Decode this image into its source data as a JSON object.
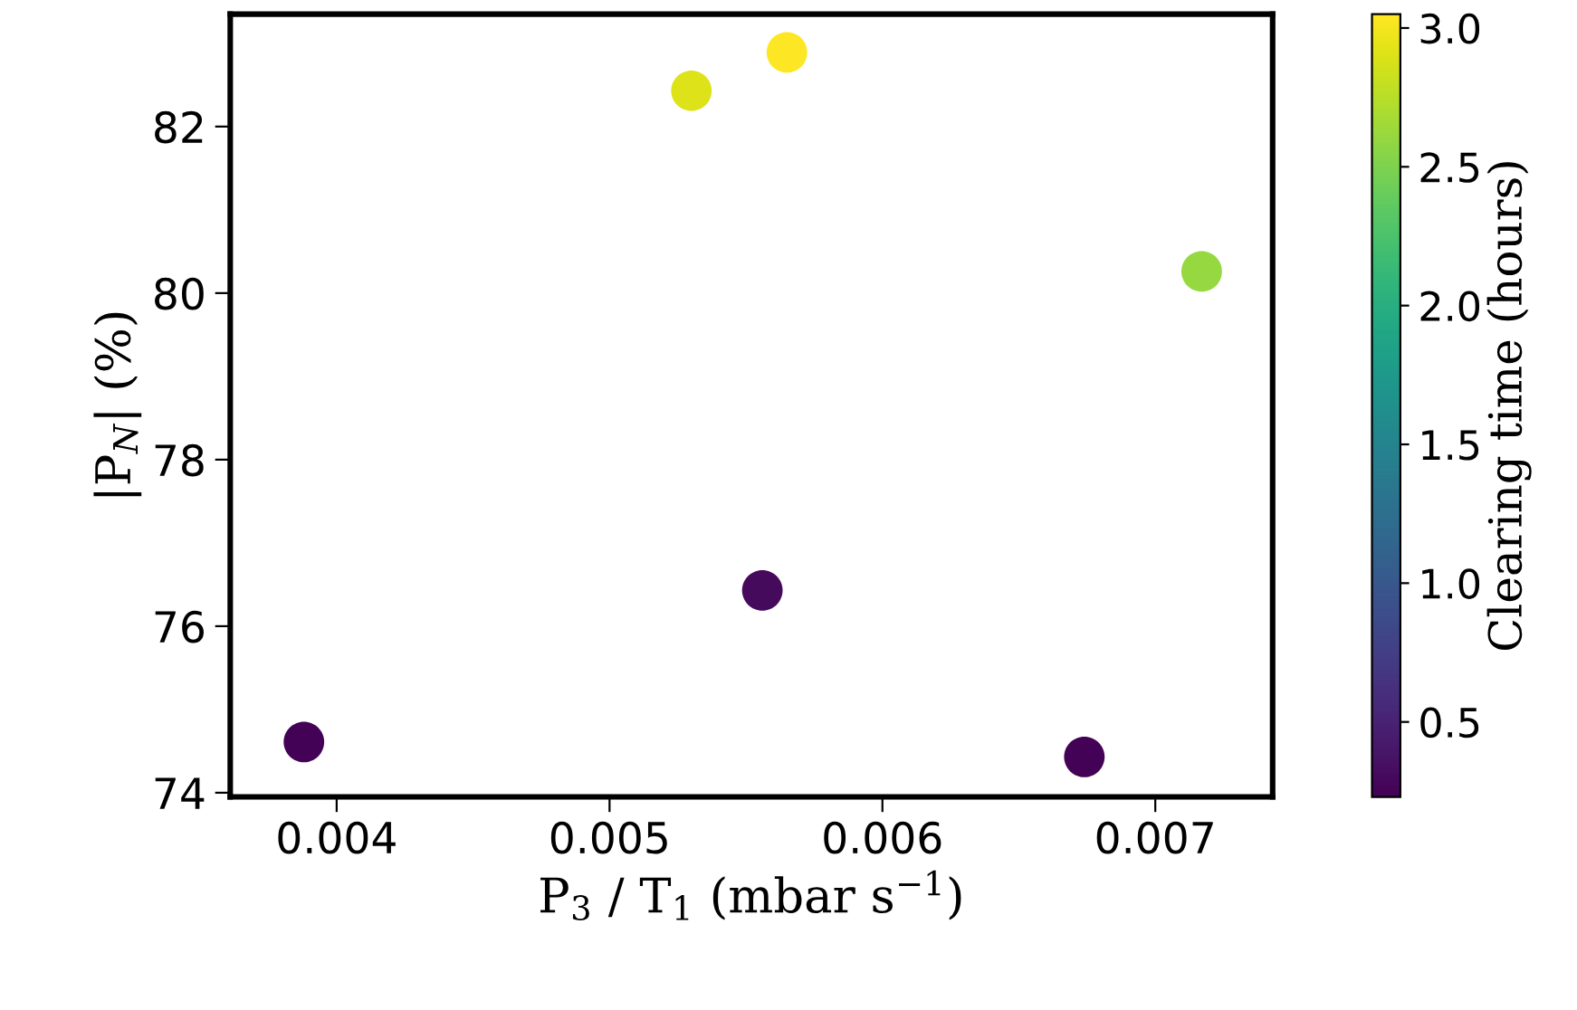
{
  "chart_data": {
    "type": "scatter",
    "xlabel": "P$_{3}$ / T$_{1}$ (mbar s$^{−1}$)",
    "ylabel": "|P$_{N}$| (%)",
    "clabel": "Clearing time (hours)",
    "x": [
      0.00388,
      0.0053,
      0.00565,
      0.00556,
      0.00717,
      0.00674
    ],
    "values": [
      74.61,
      82.43,
      82.89,
      76.43,
      80.26,
      74.43
    ],
    "cvalues": [
      0.25,
      2.9,
      3.05,
      0.3,
      2.6,
      0.25
    ],
    "xlim": [
      0.00361,
      0.00743
    ],
    "ylim": [
      73.95,
      83.35
    ],
    "xticks": [
      0.004,
      0.005,
      0.006,
      0.007
    ],
    "yticks": [
      74,
      76,
      78,
      80,
      82
    ],
    "clim": [
      0.23,
      3.05
    ],
    "cticks": [
      0.5,
      {
        "value": 1,
        "label": "1.0"
      },
      1.5,
      {
        "value": 2,
        "label": "2.0"
      },
      2.5,
      {
        "value": 3,
        "label": "3.0"
      }
    ],
    "marker": "circle",
    "grid": false,
    "legend": false
  }
}
